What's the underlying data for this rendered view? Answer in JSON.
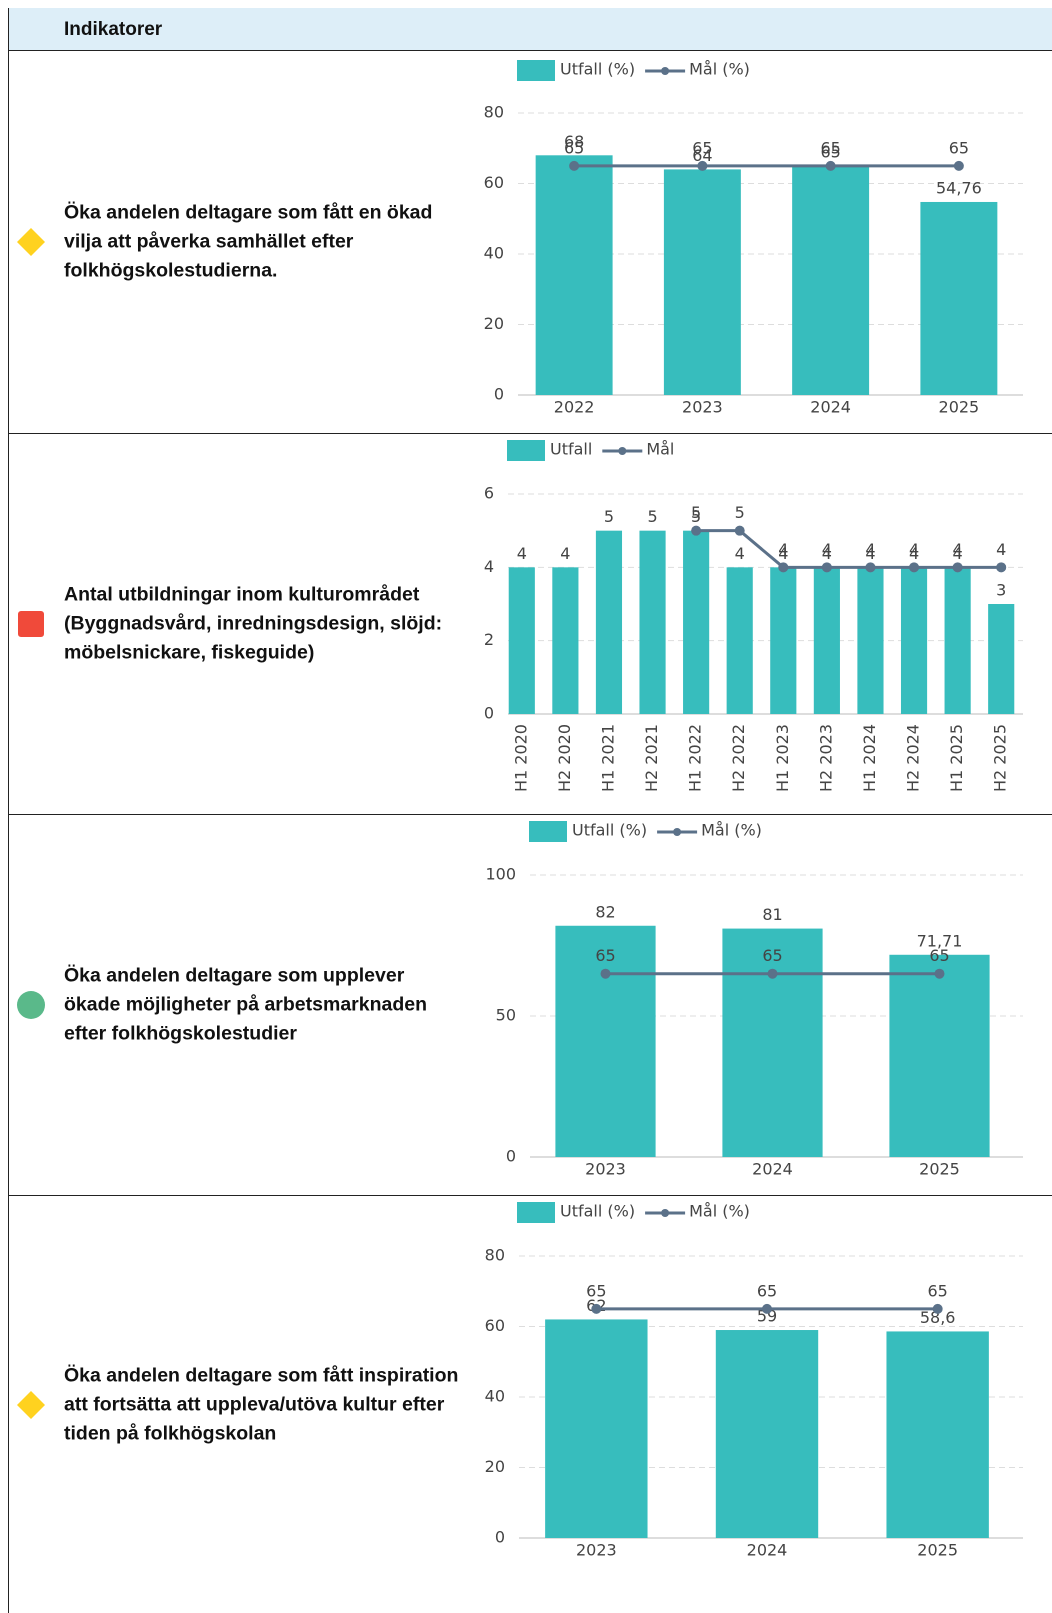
{
  "header": {
    "title": "Indikatorer"
  },
  "rows": [
    {
      "label": "Öka andelen deltagare som fått en ökad vilja att påverka samhället efter folkhögskolestudierna."
    },
    {
      "label": "Antal utbildningar inom kulturområdet (Byggnadsvård, inredningsdesign, slöjd: möbelsnickare, fiskeguide)"
    },
    {
      "label": "Öka andelen deltagare som upplever ökade möjligheter på arbetsmarknaden efter folkhögskolestudier"
    },
    {
      "label": "Öka andelen deltagare som fått inspiration att fortsätta att uppleva/utöva kultur efter tiden på folkhögskolan"
    }
  ],
  "chart_data": [
    {
      "type": "bar_line",
      "categories": [
        "2022",
        "2023",
        "2024",
        "2025"
      ],
      "series": [
        {
          "name": "Utfall (%)",
          "color": "#37bdbd",
          "values": [
            68,
            64,
            65,
            54.76
          ],
          "value_labels": [
            "68",
            "64",
            "65",
            "54,76"
          ]
        },
        {
          "name": "Mål (%)",
          "color": "#5b7189",
          "values": [
            65,
            65,
            65,
            65
          ]
        }
      ],
      "ylim": [
        0,
        80
      ],
      "yticks": [
        0,
        20,
        40,
        60,
        80
      ],
      "grid": true
    },
    {
      "type": "bar_line",
      "categories": [
        "H1 2020",
        "H2 2020",
        "H1 2021",
        "H2 2021",
        "H1 2022",
        "H2 2022",
        "H1 2023",
        "H2 2023",
        "H1 2024",
        "H2 2024",
        "H1 2025",
        "H2 2025"
      ],
      "series": [
        {
          "name": "Utfall",
          "color": "#37bdbd",
          "values": [
            4,
            4,
            5,
            5,
            5,
            4,
            4,
            4,
            4,
            4,
            4,
            3
          ]
        },
        {
          "name": "Mål",
          "color": "#5b7189",
          "values": [
            null,
            null,
            null,
            null,
            5,
            5,
            4,
            4,
            4,
            4,
            4,
            4
          ]
        }
      ],
      "ylim": [
        0,
        6
      ],
      "yticks": [
        0,
        2,
        4,
        6
      ],
      "grid": true,
      "rotate_labels": true
    },
    {
      "type": "bar_line",
      "categories": [
        "2023",
        "2024",
        "2025"
      ],
      "series": [
        {
          "name": "Utfall (%)",
          "color": "#37bdbd",
          "values": [
            82,
            81,
            71.71
          ],
          "value_labels": [
            "82",
            "81",
            "71,71"
          ]
        },
        {
          "name": "Mål (%)",
          "color": "#5b7189",
          "values": [
            65,
            65,
            65
          ]
        }
      ],
      "ylim": [
        0,
        100
      ],
      "yticks": [
        0,
        50,
        100
      ],
      "grid": true
    },
    {
      "type": "bar_line",
      "categories": [
        "2023",
        "2024",
        "2025"
      ],
      "series": [
        {
          "name": "Utfall (%)",
          "color": "#37bdbd",
          "values": [
            62,
            59,
            58.6
          ],
          "value_labels": [
            "62",
            "59",
            "58,6"
          ]
        },
        {
          "name": "Mål (%)",
          "color": "#5b7189",
          "values": [
            65,
            65,
            65
          ]
        }
      ],
      "ylim": [
        0,
        80
      ],
      "yticks": [
        0,
        20,
        40,
        60,
        80
      ],
      "grid": true
    }
  ]
}
